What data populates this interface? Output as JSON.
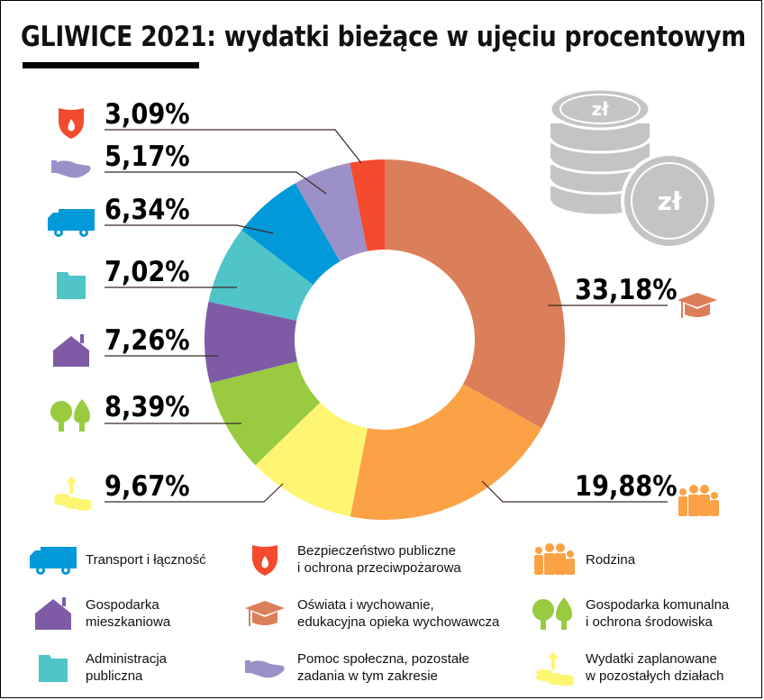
{
  "title": "GLIWICE 2021: wydatki bieżące w ujęciu procentowym",
  "currency_icon_text": "zł",
  "chart_data": {
    "type": "pie",
    "variant": "donut",
    "title": "GLIWICE 2021: wydatki bieżące w ujęciu procentowym",
    "start": "top",
    "direction": "clockwise",
    "slices": [
      {
        "key": "education",
        "label": "Oświata i wychowanie, edukacyjna opieka wychowawcza",
        "value": 33.18,
        "value_label": "33,18%",
        "color": "#DB7F5A",
        "icon": "graduation-cap-icon"
      },
      {
        "key": "family",
        "label": "Rodzina",
        "value": 19.88,
        "value_label": "19,88%",
        "color": "#FBA246",
        "icon": "family-icon"
      },
      {
        "key": "other",
        "label": "Wydatki zaplanowane w pozostałych działach",
        "value": 9.67,
        "value_label": "9,67%",
        "color": "#FEF572",
        "icon": "coins-arrow-icon"
      },
      {
        "key": "communal",
        "label": "Gospodarka komunalna i ochrona środowiska",
        "value": 8.39,
        "value_label": "8,39%",
        "color": "#98CB40",
        "icon": "trees-icon"
      },
      {
        "key": "housing",
        "label": "Gospodarka mieszkaniowa",
        "value": 7.26,
        "value_label": "7,26%",
        "color": "#7F5BA6",
        "icon": "house-icon"
      },
      {
        "key": "admin",
        "label": "Administracja publiczna",
        "value": 7.02,
        "value_label": "7,02%",
        "color": "#4FC4C9",
        "icon": "folder-icon"
      },
      {
        "key": "transport",
        "label": "Transport i łączność",
        "value": 6.34,
        "value_label": "6,34%",
        "color": "#0299D9",
        "icon": "truck-icon"
      },
      {
        "key": "social",
        "label": "Pomoc społeczna, pozostałe zadania w tym zakresie",
        "value": 5.17,
        "value_label": "5,17%",
        "color": "#9C90C8",
        "icon": "helping-hand-icon"
      },
      {
        "key": "safety",
        "label": "Bezpieczeństwo publiczne i ochrona przeciwpożarowa",
        "value": 3.09,
        "value_label": "3,09%",
        "color": "#F44A2D",
        "icon": "fire-shield-icon"
      }
    ]
  },
  "legend": [
    {
      "line1": "Transport i łączność",
      "line2": "",
      "icon": "truck-icon",
      "color": "#0299D9"
    },
    {
      "line1": "Bezpieczeństwo publiczne",
      "line2": "i ochrona przeciwpożarowa",
      "icon": "fire-shield-icon",
      "color": "#F44A2D"
    },
    {
      "line1": "Rodzina",
      "line2": "",
      "icon": "family-icon",
      "color": "#FBA246"
    },
    {
      "line1": "Gospodarka",
      "line2": "mieszkaniowa",
      "icon": "house-icon",
      "color": "#7F5BA6"
    },
    {
      "line1": "Oświata i wychowanie,",
      "line2": "edukacyjna opieka wychowawcza",
      "icon": "graduation-cap-icon",
      "color": "#DB7F5A"
    },
    {
      "line1": "Gospodarka komunalna",
      "line2": "i ochrona środowiska",
      "icon": "trees-icon",
      "color": "#98CB40"
    },
    {
      "line1": "Administracja",
      "line2": "publiczna",
      "icon": "folder-icon",
      "color": "#4FC4C9"
    },
    {
      "line1": "Pomoc społeczna, pozostałe",
      "line2": "zadania w tym zakresie",
      "icon": "helping-hand-icon",
      "color": "#9C90C8"
    },
    {
      "line1": "Wydatki zaplanowane",
      "line2": "w pozostałych działach",
      "icon": "coins-arrow-icon",
      "color": "#FEF572"
    }
  ]
}
